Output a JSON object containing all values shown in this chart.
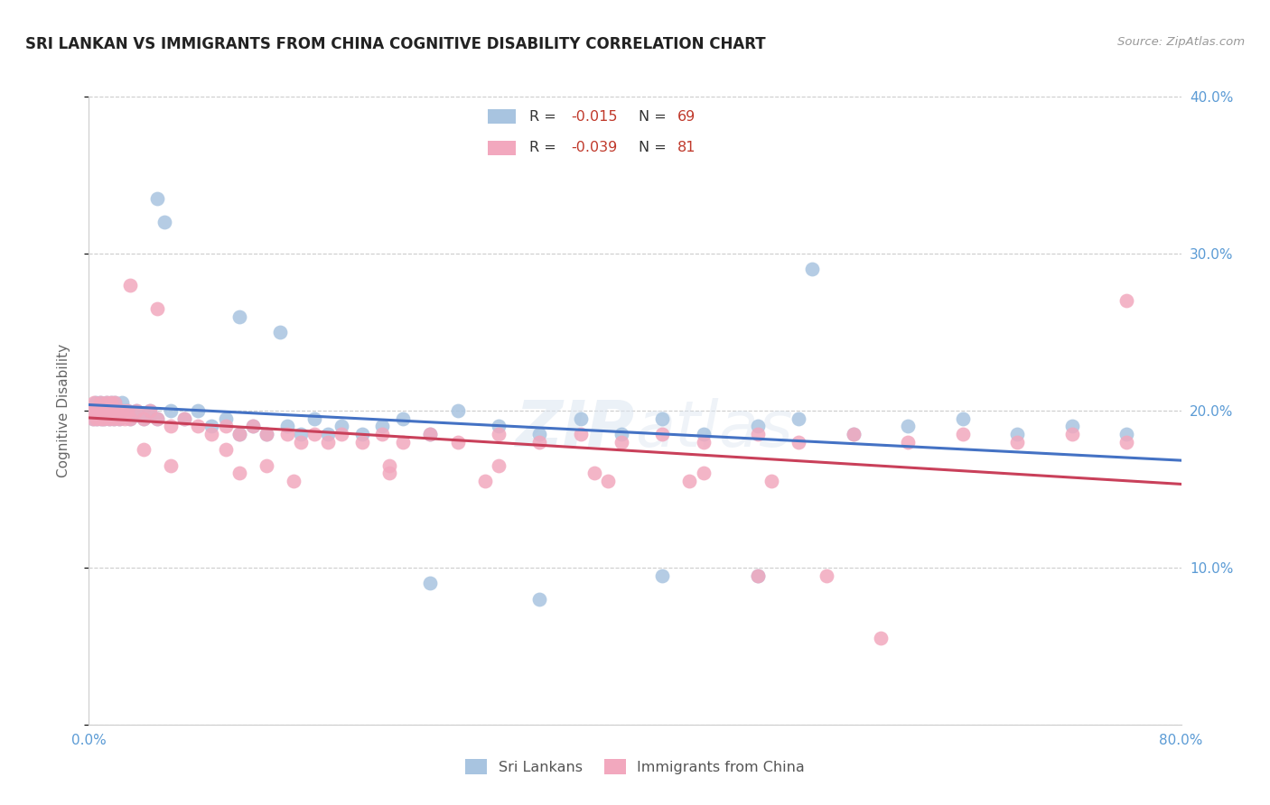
{
  "title": "SRI LANKAN VS IMMIGRANTS FROM CHINA COGNITIVE DISABILITY CORRELATION CHART",
  "source": "Source: ZipAtlas.com",
  "ylabel": "Cognitive Disability",
  "xlim": [
    0.0,
    0.8
  ],
  "ylim": [
    0.0,
    0.4
  ],
  "xticks": [
    0.0,
    0.2,
    0.4,
    0.6,
    0.8
  ],
  "xticklabels": [
    "0.0%",
    "",
    "",
    "",
    "80.0%"
  ],
  "yticks": [
    0.0,
    0.1,
    0.2,
    0.3,
    0.4
  ],
  "yticklabels_right": [
    "",
    "10.0%",
    "20.0%",
    "30.0%",
    "40.0%"
  ],
  "sri_lankan_color": "#a8c4e0",
  "china_color": "#f2a8be",
  "trend_sri_lankan_color": "#4472c4",
  "trend_china_color": "#c9405a",
  "legend_sri_R": "-0.015",
  "legend_sri_N": "69",
  "legend_china_R": "-0.039",
  "legend_china_N": "81",
  "watermark_zip": "ZIP",
  "watermark_atlas": "atlas",
  "sri_lankans_x": [
    0.002,
    0.003,
    0.004,
    0.005,
    0.006,
    0.007,
    0.008,
    0.009,
    0.01,
    0.011,
    0.012,
    0.013,
    0.014,
    0.015,
    0.016,
    0.017,
    0.018,
    0.019,
    0.02,
    0.022,
    0.024,
    0.026,
    0.028,
    0.03,
    0.035,
    0.04,
    0.045,
    0.05,
    0.06,
    0.07,
    0.08,
    0.09,
    0.1,
    0.11,
    0.12,
    0.13,
    0.145,
    0.155,
    0.165,
    0.175,
    0.185,
    0.2,
    0.215,
    0.23,
    0.25,
    0.27,
    0.3,
    0.33,
    0.36,
    0.39,
    0.42,
    0.45,
    0.49,
    0.52,
    0.56,
    0.6,
    0.64,
    0.68,
    0.72,
    0.76,
    0.05,
    0.055,
    0.11,
    0.14,
    0.25,
    0.33,
    0.42,
    0.49,
    0.53
  ],
  "sri_lankans_y": [
    0.2,
    0.195,
    0.2,
    0.205,
    0.195,
    0.2,
    0.205,
    0.195,
    0.2,
    0.195,
    0.2,
    0.205,
    0.2,
    0.195,
    0.205,
    0.2,
    0.195,
    0.205,
    0.2,
    0.195,
    0.205,
    0.2,
    0.2,
    0.195,
    0.2,
    0.195,
    0.2,
    0.195,
    0.2,
    0.195,
    0.2,
    0.19,
    0.195,
    0.185,
    0.19,
    0.185,
    0.19,
    0.185,
    0.195,
    0.185,
    0.19,
    0.185,
    0.19,
    0.195,
    0.185,
    0.2,
    0.19,
    0.185,
    0.195,
    0.185,
    0.195,
    0.185,
    0.19,
    0.195,
    0.185,
    0.19,
    0.195,
    0.185,
    0.19,
    0.185,
    0.335,
    0.32,
    0.26,
    0.25,
    0.09,
    0.08,
    0.095,
    0.095,
    0.29
  ],
  "china_x": [
    0.002,
    0.003,
    0.004,
    0.005,
    0.006,
    0.007,
    0.008,
    0.009,
    0.01,
    0.011,
    0.012,
    0.013,
    0.014,
    0.015,
    0.016,
    0.017,
    0.018,
    0.019,
    0.02,
    0.022,
    0.024,
    0.026,
    0.028,
    0.03,
    0.035,
    0.04,
    0.045,
    0.05,
    0.06,
    0.07,
    0.08,
    0.09,
    0.1,
    0.11,
    0.12,
    0.13,
    0.145,
    0.155,
    0.165,
    0.175,
    0.185,
    0.2,
    0.215,
    0.23,
    0.25,
    0.27,
    0.3,
    0.33,
    0.36,
    0.39,
    0.42,
    0.45,
    0.49,
    0.52,
    0.56,
    0.6,
    0.64,
    0.68,
    0.72,
    0.76,
    0.03,
    0.05,
    0.1,
    0.13,
    0.22,
    0.3,
    0.38,
    0.45,
    0.5,
    0.76,
    0.04,
    0.06,
    0.11,
    0.15,
    0.22,
    0.29,
    0.37,
    0.44,
    0.49,
    0.54,
    0.58
  ],
  "china_y": [
    0.2,
    0.195,
    0.205,
    0.2,
    0.195,
    0.2,
    0.205,
    0.195,
    0.2,
    0.195,
    0.2,
    0.205,
    0.2,
    0.195,
    0.205,
    0.2,
    0.195,
    0.205,
    0.2,
    0.195,
    0.2,
    0.195,
    0.2,
    0.195,
    0.2,
    0.195,
    0.2,
    0.195,
    0.19,
    0.195,
    0.19,
    0.185,
    0.19,
    0.185,
    0.19,
    0.185,
    0.185,
    0.18,
    0.185,
    0.18,
    0.185,
    0.18,
    0.185,
    0.18,
    0.185,
    0.18,
    0.185,
    0.18,
    0.185,
    0.18,
    0.185,
    0.18,
    0.185,
    0.18,
    0.185,
    0.18,
    0.185,
    0.18,
    0.185,
    0.18,
    0.28,
    0.265,
    0.175,
    0.165,
    0.16,
    0.165,
    0.155,
    0.16,
    0.155,
    0.27,
    0.175,
    0.165,
    0.16,
    0.155,
    0.165,
    0.155,
    0.16,
    0.155,
    0.095,
    0.095,
    0.055
  ]
}
